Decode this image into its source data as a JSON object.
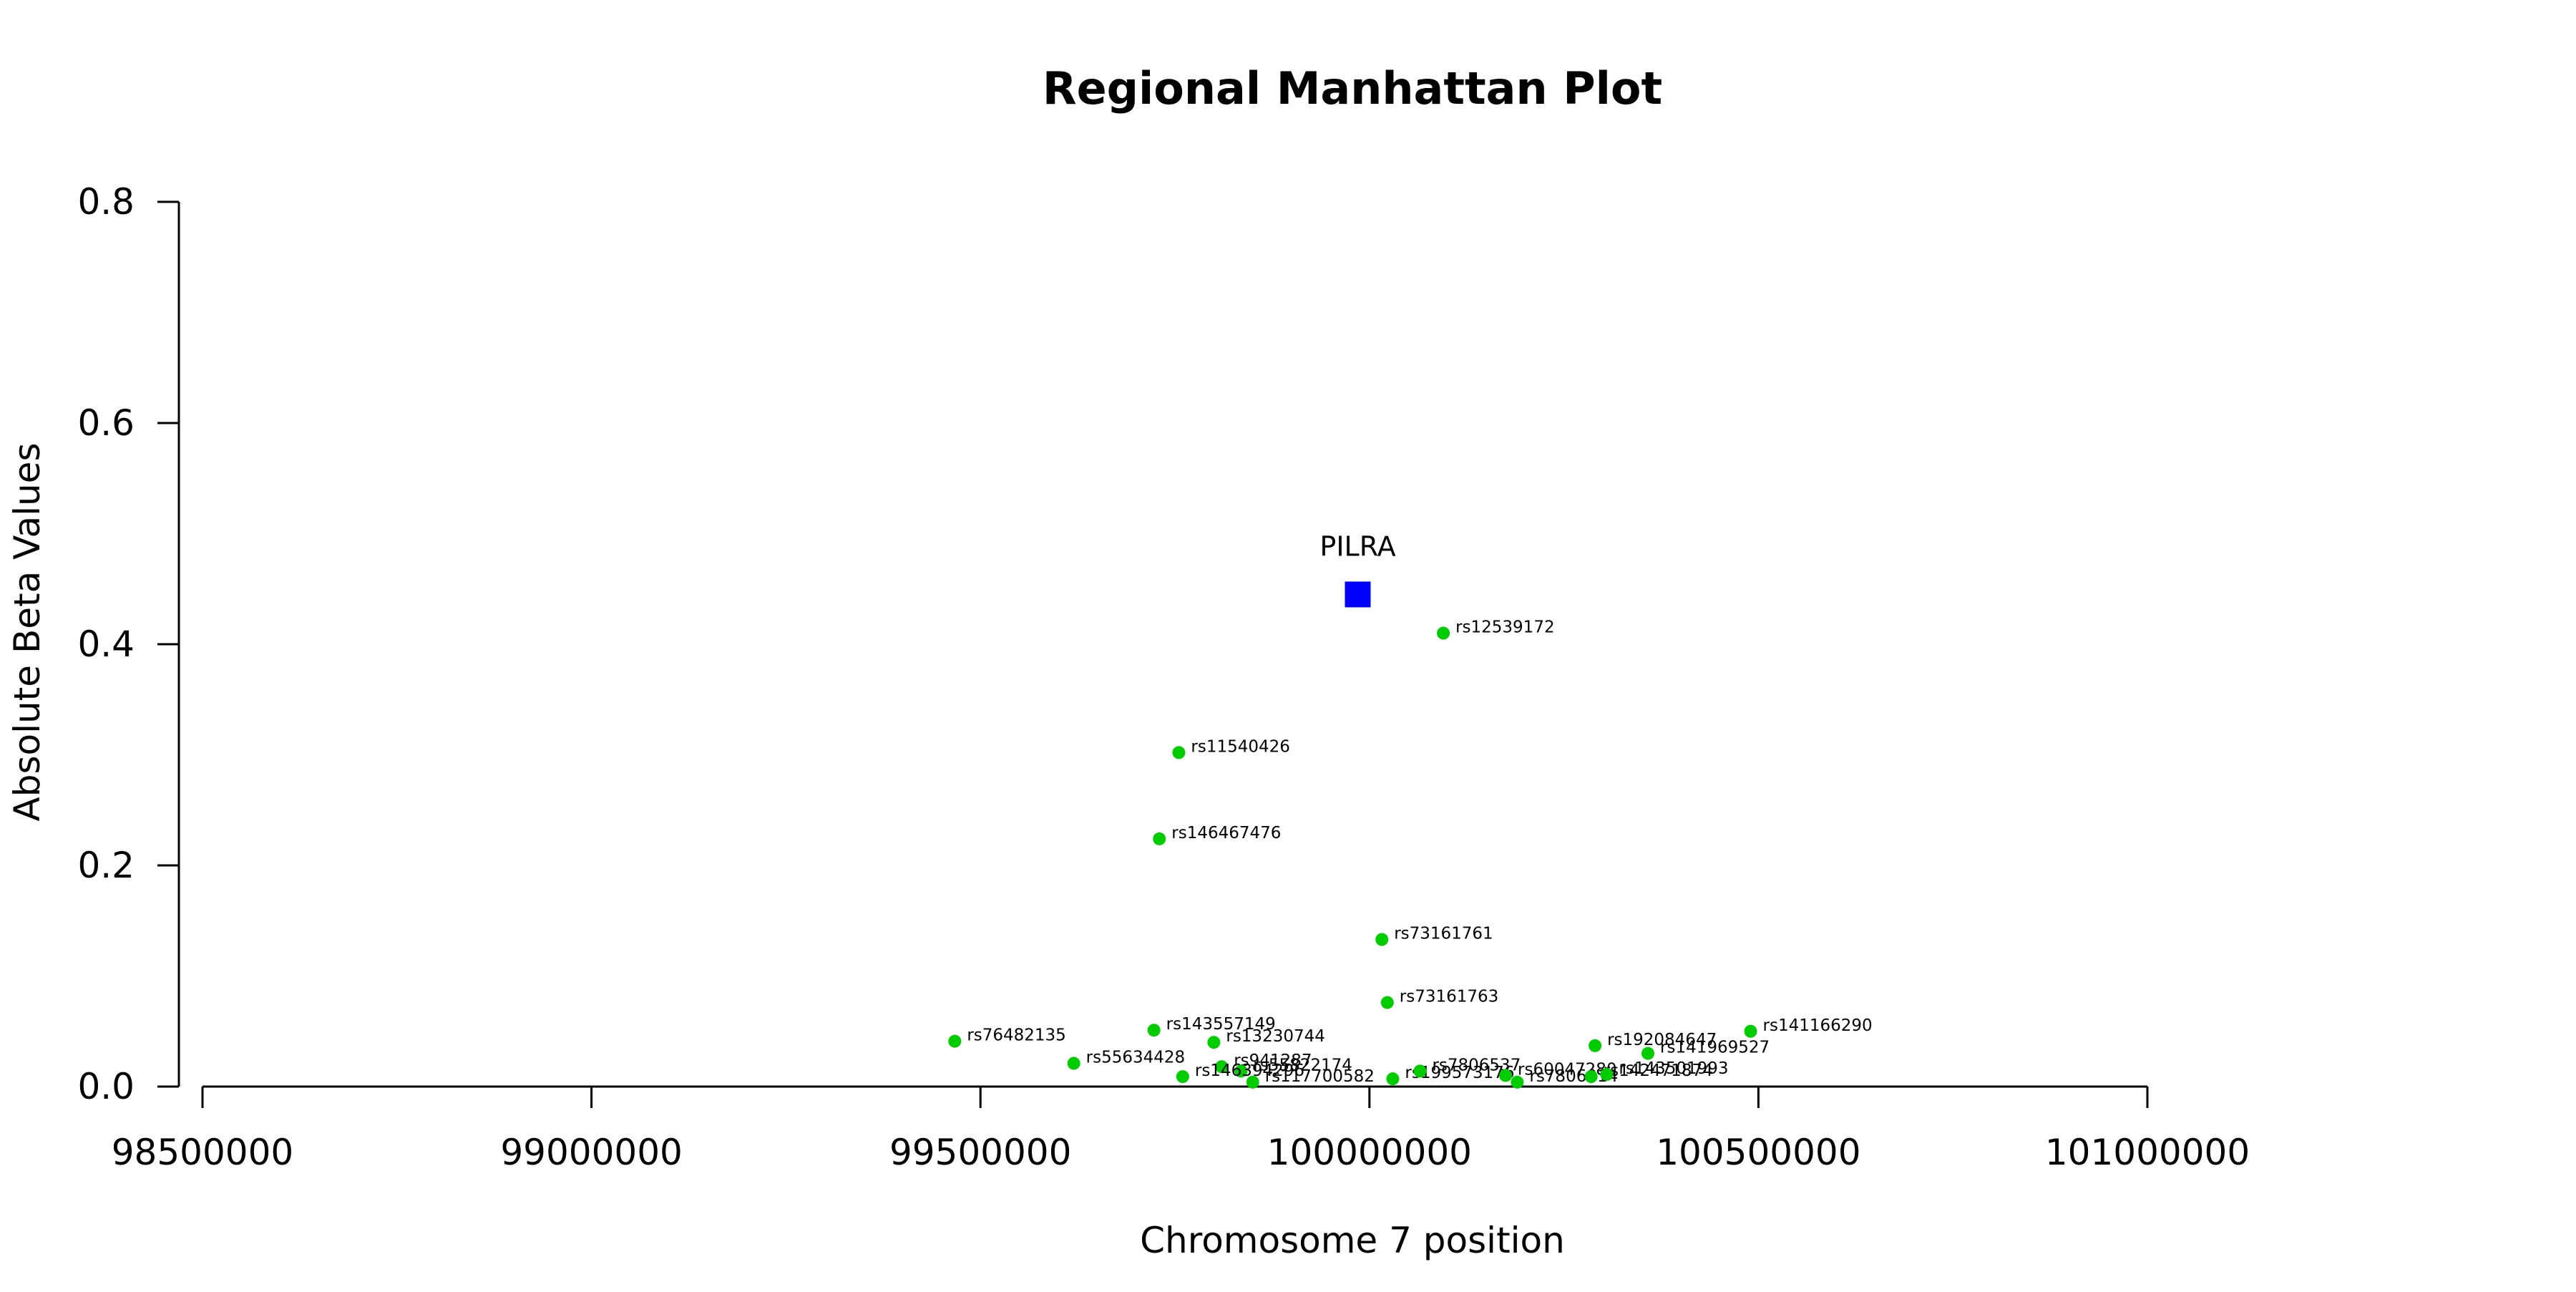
{
  "chart_data": {
    "type": "scatter",
    "title": "Regional Manhattan Plot",
    "xlabel": "Chromosome 7 position",
    "ylabel": "Absolute Beta Values",
    "xlim": [
      98500000,
      101000000
    ],
    "ylim": [
      0,
      0.8
    ],
    "x_ticks": [
      "98500000",
      "99000000",
      "99500000",
      "100000000",
      "100500000",
      "101000000"
    ],
    "y_ticks": [
      "0.0",
      "0.2",
      "0.4",
      "0.6",
      "0.8"
    ],
    "grid": false,
    "colors": {
      "snp": "#00cc00",
      "gene": "#0000ff"
    },
    "gene": {
      "name": "PILRA",
      "x": 99985000,
      "y": 0.445
    },
    "snps": [
      {
        "id": "rs12539172",
        "x": 100095000,
        "y": 0.41
      },
      {
        "id": "rs11540426",
        "x": 99755000,
        "y": 0.302
      },
      {
        "id": "rs146467476",
        "x": 99730000,
        "y": 0.224
      },
      {
        "id": "rs73161761",
        "x": 100016000,
        "y": 0.133
      },
      {
        "id": "rs73161763",
        "x": 100023000,
        "y": 0.076
      },
      {
        "id": "rs76482135",
        "x": 99467000,
        "y": 0.041
      },
      {
        "id": "rs143557149",
        "x": 99723000,
        "y": 0.051
      },
      {
        "id": "rs13230744",
        "x": 99800000,
        "y": 0.04
      },
      {
        "id": "rs55634428",
        "x": 99620000,
        "y": 0.021
      },
      {
        "id": "rs941287",
        "x": 99810000,
        "y": 0.018
      },
      {
        "id": "rs55822174",
        "x": 99835000,
        "y": 0.014
      },
      {
        "id": "rs146394296",
        "x": 99760000,
        "y": 0.009
      },
      {
        "id": "rs117700582",
        "x": 99850000,
        "y": 0.004
      },
      {
        "id": "rs199573176",
        "x": 100030000,
        "y": 0.007
      },
      {
        "id": "rs7806537",
        "x": 100065000,
        "y": 0.014
      },
      {
        "id": "rs60047280",
        "x": 100175000,
        "y": 0.01
      },
      {
        "id": "rs7806014",
        "x": 100190000,
        "y": 0.004
      },
      {
        "id": "rs192084647",
        "x": 100290000,
        "y": 0.037
      },
      {
        "id": "rs141969527",
        "x": 100358000,
        "y": 0.03
      },
      {
        "id": "rs141166290",
        "x": 100490000,
        "y": 0.05
      },
      {
        "id": "rs142471874",
        "x": 100285000,
        "y": 0.009
      },
      {
        "id": "rs143501993",
        "x": 100305000,
        "y": 0.011
      }
    ]
  }
}
